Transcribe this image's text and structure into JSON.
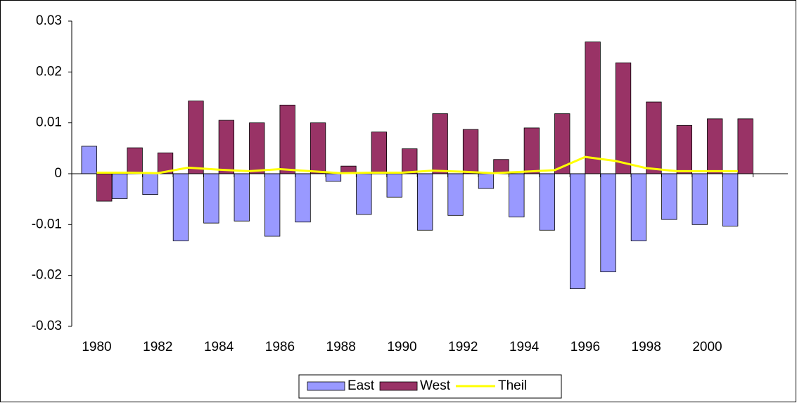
{
  "chart_data": {
    "type": "bar",
    "categories": [
      "1980",
      null,
      "1982",
      null,
      "1984",
      null,
      "1986",
      null,
      "1988",
      null,
      "1990",
      null,
      "1992",
      null,
      "1994",
      null,
      "1996",
      null,
      "1998",
      null,
      "2000",
      null
    ],
    "series": [
      {
        "name": "East",
        "color": "#9999ff",
        "values": [
          0.0054,
          -0.0049,
          -0.0041,
          -0.0132,
          -0.0097,
          -0.0093,
          -0.0123,
          -0.0095,
          -0.0015,
          -0.008,
          -0.0046,
          -0.0111,
          -0.0082,
          -0.0029,
          -0.0085,
          -0.0111,
          -0.0226,
          -0.0193,
          -0.0132,
          -0.009,
          -0.01,
          -0.0103
        ]
      },
      {
        "name": "West",
        "color": "#993366",
        "values": [
          -0.0054,
          0.0051,
          0.0041,
          0.0143,
          0.0105,
          0.01,
          0.0135,
          0.01,
          0.0015,
          0.0082,
          0.0049,
          0.0118,
          0.0087,
          0.0028,
          0.009,
          0.0118,
          0.0259,
          0.0218,
          0.0141,
          0.0095,
          0.0108,
          0.0108
        ]
      },
      {
        "name": "Theil",
        "type": "line",
        "color": "#ffff00",
        "values": [
          0.0002,
          0.0002,
          0.0001,
          0.0012,
          0.0008,
          0.0005,
          0.0009,
          0.0005,
          0.0001,
          0.0002,
          0.0002,
          0.0006,
          0.0004,
          0.0001,
          0.0004,
          0.0007,
          0.0033,
          0.0025,
          0.0011,
          0.0005,
          0.0005,
          0.0005
        ]
      }
    ],
    "ylim": [
      -0.03,
      0.03
    ],
    "yticks": [
      -0.03,
      -0.02,
      -0.01,
      0,
      0.01,
      0.02,
      0.03
    ],
    "grid": false,
    "legend": "bottom"
  }
}
